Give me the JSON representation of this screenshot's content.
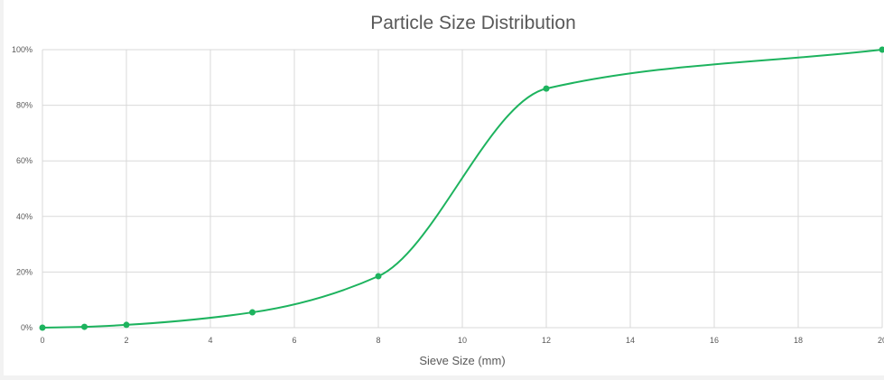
{
  "chart_data": {
    "type": "line",
    "title": "Particle Size Distribution",
    "xlabel": "Sieve Size (mm)",
    "ylabel": "",
    "xlim": [
      0,
      20
    ],
    "ylim": [
      0,
      100
    ],
    "x_ticks": [
      0,
      2,
      4,
      6,
      8,
      10,
      12,
      14,
      16,
      18,
      20
    ],
    "x_tick_labels": [
      "0",
      "2",
      "4",
      "6",
      "8",
      "10",
      "12",
      "14",
      "16",
      "18",
      "20"
    ],
    "y_ticks": [
      0,
      20,
      40,
      60,
      80,
      100
    ],
    "y_tick_labels": [
      "0%",
      "20%",
      "40%",
      "60%",
      "80%",
      "100%"
    ],
    "grid": true,
    "smooth": true,
    "series": [
      {
        "color": "#1db35e",
        "points": [
          {
            "x": 0,
            "y": 0
          },
          {
            "x": 1,
            "y": 0.3
          },
          {
            "x": 2,
            "y": 1
          },
          {
            "x": 5,
            "y": 5.5
          },
          {
            "x": 8,
            "y": 18.5
          },
          {
            "x": 12,
            "y": 86
          },
          {
            "x": 20,
            "y": 100
          }
        ]
      }
    ]
  }
}
